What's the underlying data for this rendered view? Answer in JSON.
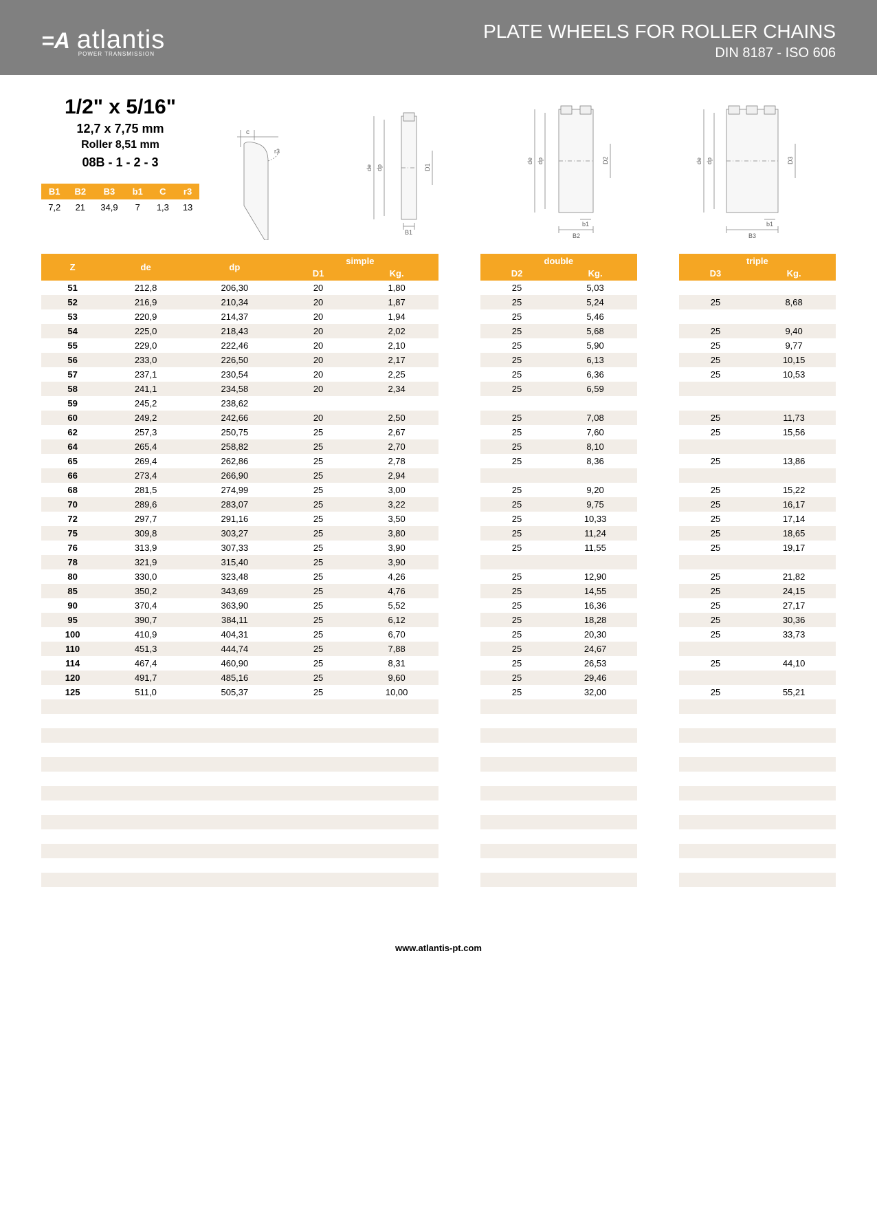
{
  "header": {
    "logo_icon": "A",
    "logo_text": "atlantis",
    "logo_sub": "POWER TRANSMISSION",
    "title": "PLATE WHEELS FOR ROLLER CHAINS",
    "subtitle": "DIN 8187 - ISO 606"
  },
  "spec": {
    "title": "1/2\" x 5/16\"",
    "line1": "12,7 x 7,75 mm",
    "line2": "Roller 8,51 mm",
    "line3": "08B - 1 - 2 - 3"
  },
  "small_table": {
    "headers": [
      "B1",
      "B2",
      "B3",
      "b1",
      "C",
      "r3"
    ],
    "row": [
      "7,2",
      "21",
      "34,9",
      "7",
      "1,3",
      "13"
    ]
  },
  "diagram_labels": {
    "c": "c",
    "r3": "r3",
    "de": "de",
    "dp": "dp",
    "D1": "D1",
    "D2": "D2",
    "D3": "D3",
    "B1": "B1",
    "B2": "B2",
    "B3": "B3",
    "b1": "b1"
  },
  "main_table": {
    "group_headers": [
      "simple",
      "double",
      "triple"
    ],
    "sub_headers": [
      "Z",
      "de",
      "dp",
      "D1",
      "Kg.",
      "D2",
      "Kg.",
      "D3",
      "Kg."
    ],
    "header_color": "#f5a623",
    "header_text_color": "#ffffff",
    "row_alt_bg": "#f2ede7",
    "font_size": 13,
    "empty_rows_after": 14,
    "rows": [
      [
        "51",
        "212,8",
        "206,30",
        "20",
        "1,80",
        "25",
        "5,03",
        "",
        ""
      ],
      [
        "52",
        "216,9",
        "210,34",
        "20",
        "1,87",
        "25",
        "5,24",
        "25",
        "8,68"
      ],
      [
        "53",
        "220,9",
        "214,37",
        "20",
        "1,94",
        "25",
        "5,46",
        "",
        ""
      ],
      [
        "54",
        "225,0",
        "218,43",
        "20",
        "2,02",
        "25",
        "5,68",
        "25",
        "9,40"
      ],
      [
        "55",
        "229,0",
        "222,46",
        "20",
        "2,10",
        "25",
        "5,90",
        "25",
        "9,77"
      ],
      [
        "56",
        "233,0",
        "226,50",
        "20",
        "2,17",
        "25",
        "6,13",
        "25",
        "10,15"
      ],
      [
        "57",
        "237,1",
        "230,54",
        "20",
        "2,25",
        "25",
        "6,36",
        "25",
        "10,53"
      ],
      [
        "58",
        "241,1",
        "234,58",
        "20",
        "2,34",
        "25",
        "6,59",
        "",
        ""
      ],
      [
        "59",
        "245,2",
        "238,62",
        "",
        "",
        "",
        "",
        "",
        ""
      ],
      [
        "60",
        "249,2",
        "242,66",
        "20",
        "2,50",
        "25",
        "7,08",
        "25",
        "11,73"
      ],
      [
        "62",
        "257,3",
        "250,75",
        "25",
        "2,67",
        "25",
        "7,60",
        "25",
        "15,56"
      ],
      [
        "64",
        "265,4",
        "258,82",
        "25",
        "2,70",
        "25",
        "8,10",
        "",
        ""
      ],
      [
        "65",
        "269,4",
        "262,86",
        "25",
        "2,78",
        "25",
        "8,36",
        "25",
        "13,86"
      ],
      [
        "66",
        "273,4",
        "266,90",
        "25",
        "2,94",
        "",
        "",
        "",
        ""
      ],
      [
        "68",
        "281,5",
        "274,99",
        "25",
        "3,00",
        "25",
        "9,20",
        "25",
        "15,22"
      ],
      [
        "70",
        "289,6",
        "283,07",
        "25",
        "3,22",
        "25",
        "9,75",
        "25",
        "16,17"
      ],
      [
        "72",
        "297,7",
        "291,16",
        "25",
        "3,50",
        "25",
        "10,33",
        "25",
        "17,14"
      ],
      [
        "75",
        "309,8",
        "303,27",
        "25",
        "3,80",
        "25",
        "11,24",
        "25",
        "18,65"
      ],
      [
        "76",
        "313,9",
        "307,33",
        "25",
        "3,90",
        "25",
        "11,55",
        "25",
        "19,17"
      ],
      [
        "78",
        "321,9",
        "315,40",
        "25",
        "3,90",
        "",
        "",
        "",
        ""
      ],
      [
        "80",
        "330,0",
        "323,48",
        "25",
        "4,26",
        "25",
        "12,90",
        "25",
        "21,82"
      ],
      [
        "85",
        "350,2",
        "343,69",
        "25",
        "4,76",
        "25",
        "14,55",
        "25",
        "24,15"
      ],
      [
        "90",
        "370,4",
        "363,90",
        "25",
        "5,52",
        "25",
        "16,36",
        "25",
        "27,17"
      ],
      [
        "95",
        "390,7",
        "384,11",
        "25",
        "6,12",
        "25",
        "18,28",
        "25",
        "30,36"
      ],
      [
        "100",
        "410,9",
        "404,31",
        "25",
        "6,70",
        "25",
        "20,30",
        "25",
        "33,73"
      ],
      [
        "110",
        "451,3",
        "444,74",
        "25",
        "7,88",
        "25",
        "24,67",
        "",
        ""
      ],
      [
        "114",
        "467,4",
        "460,90",
        "25",
        "8,31",
        "25",
        "26,53",
        "25",
        "44,10"
      ],
      [
        "120",
        "491,7",
        "485,16",
        "25",
        "9,60",
        "25",
        "29,46",
        "",
        ""
      ],
      [
        "125",
        "511,0",
        "505,37",
        "25",
        "10,00",
        "25",
        "32,00",
        "25",
        "55,21"
      ]
    ]
  },
  "footer": {
    "url": "www.atlantis-pt.com"
  },
  "colors": {
    "header_bg": "#808080",
    "accent": "#f5a623",
    "white": "#ffffff",
    "alt_row": "#f2ede7",
    "text": "#000000"
  }
}
